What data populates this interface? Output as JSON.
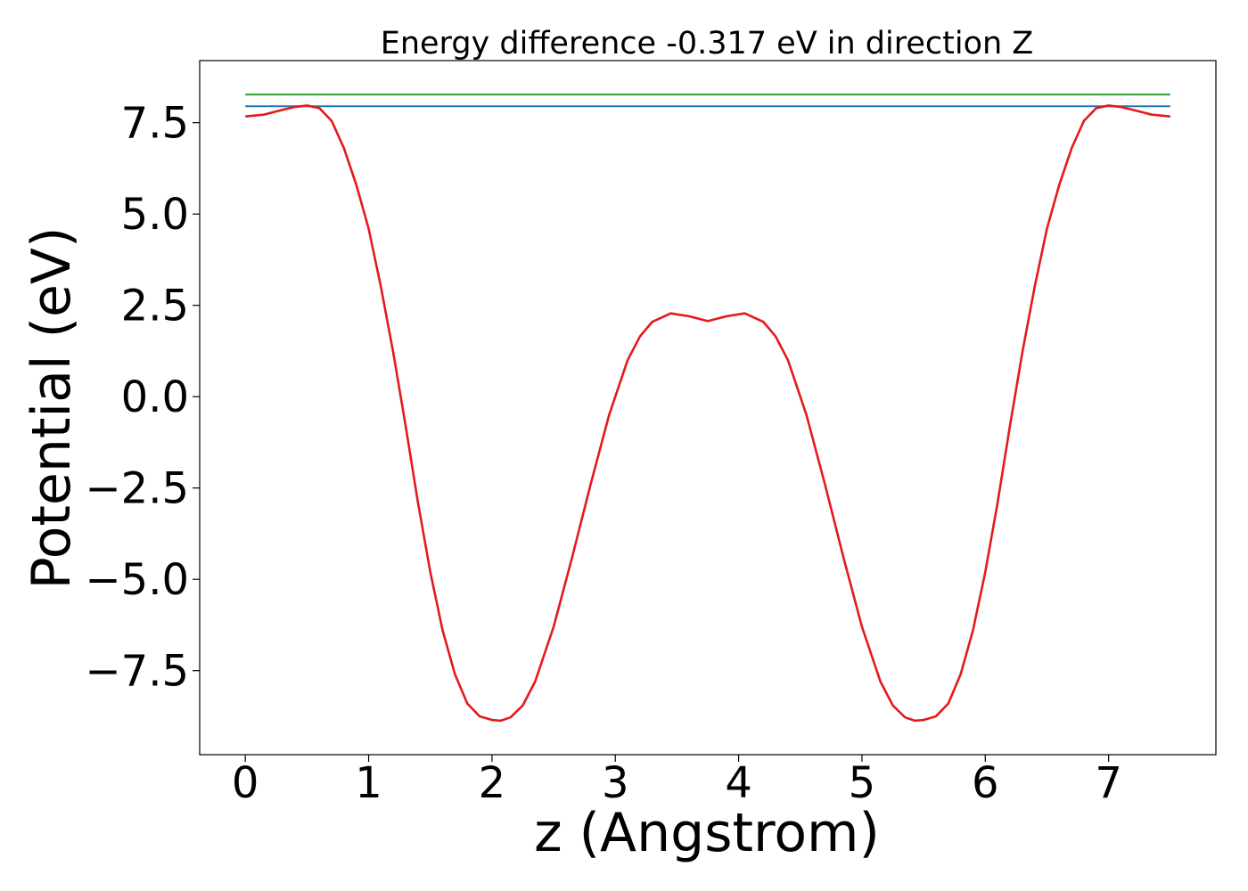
{
  "chart_data": {
    "type": "line",
    "title": "Energy difference -0.317 eV in direction Z",
    "xlabel": "z (Angstrom)",
    "ylabel": "Potential (eV)",
    "xlim": [
      -0.37,
      7.87
    ],
    "ylim": [
      -9.8,
      9.2
    ],
    "grid": false,
    "x_ticks": [
      0,
      1,
      2,
      3,
      4,
      5,
      6,
      7
    ],
    "x_tick_labels": [
      "0",
      "1",
      "2",
      "3",
      "4",
      "5",
      "6",
      "7"
    ],
    "y_ticks": [
      7.5,
      5.0,
      2.5,
      0.0,
      -2.5,
      -5.0,
      -7.5
    ],
    "y_tick_labels": [
      "7.5",
      "5.0",
      "2.5",
      "0.0",
      "−2.5",
      "−5.0",
      "−7.5"
    ],
    "colors": {
      "potential": "#e31a1c",
      "reference_blue": "#1f77b4",
      "reference_green": "#2ca02c"
    },
    "series": [
      {
        "kind": "hline",
        "color_key": "reference_green",
        "x": [
          0,
          7.5
        ],
        "y": [
          8.27,
          8.27
        ]
      },
      {
        "kind": "hline",
        "color_key": "reference_blue",
        "x": [
          0,
          7.5
        ],
        "y": [
          7.95,
          7.95
        ]
      },
      {
        "kind": "curve",
        "color_key": "potential",
        "x": [
          0,
          0.15,
          0.3,
          0.4,
          0.5,
          0.6,
          0.7,
          0.8,
          0.9,
          1.0,
          1.1,
          1.2,
          1.3,
          1.4,
          1.5,
          1.6,
          1.7,
          1.8,
          1.9,
          2.0,
          2.07,
          2.15,
          2.25,
          2.35,
          2.5,
          2.65,
          2.8,
          2.95,
          3.1,
          3.2,
          3.3,
          3.45,
          3.6,
          3.75,
          3.9,
          4.05,
          4.2,
          4.3,
          4.4,
          4.55,
          4.7,
          4.85,
          5.0,
          5.15,
          5.25,
          5.35,
          5.43,
          5.5,
          5.6,
          5.7,
          5.8,
          5.9,
          6.0,
          6.1,
          6.2,
          6.3,
          6.4,
          6.5,
          6.6,
          6.7,
          6.8,
          6.9,
          7.0,
          7.1,
          7.2,
          7.35,
          7.5
        ],
        "y": [
          7.67,
          7.72,
          7.85,
          7.93,
          7.97,
          7.9,
          7.55,
          6.8,
          5.8,
          4.6,
          3.0,
          1.2,
          -0.8,
          -2.9,
          -4.8,
          -6.4,
          -7.6,
          -8.4,
          -8.75,
          -8.85,
          -8.87,
          -8.78,
          -8.45,
          -7.8,
          -6.3,
          -4.4,
          -2.4,
          -0.5,
          1.0,
          1.65,
          2.05,
          2.28,
          2.2,
          2.07,
          2.2,
          2.28,
          2.05,
          1.65,
          1.0,
          -0.5,
          -2.4,
          -4.4,
          -6.3,
          -7.8,
          -8.45,
          -8.78,
          -8.87,
          -8.85,
          -8.75,
          -8.4,
          -7.6,
          -6.4,
          -4.8,
          -2.9,
          -0.8,
          1.2,
          3.0,
          4.6,
          5.8,
          6.8,
          7.55,
          7.9,
          7.97,
          7.93,
          7.85,
          7.72,
          7.67
        ]
      }
    ]
  }
}
